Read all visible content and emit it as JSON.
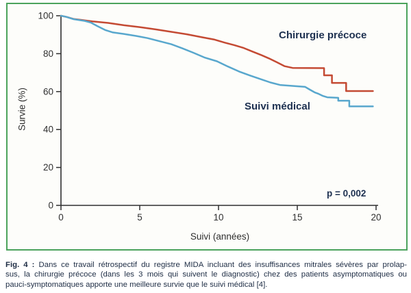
{
  "colors": {
    "panel_border": "#4ba35c",
    "panel_background": "#fdfdfa",
    "axis": "#2f2f2f",
    "navy_text": "#1d3050",
    "caption_text": "#1d2c44"
  },
  "chart_data": {
    "type": "line",
    "subtype": "kaplan-meier-survival-curves",
    "title": "",
    "xlabel": "Suivi (années)",
    "ylabel": "Survie (%)",
    "xlim": [
      0,
      20
    ],
    "ylim": [
      0,
      100
    ],
    "x_ticks": [
      "0",
      "5",
      "10",
      "15",
      "20"
    ],
    "y_ticks": [
      "0",
      "20",
      "40",
      "60",
      "80",
      "100"
    ],
    "grid": false,
    "legend_position": "inline-labels",
    "annotation": "p = 0,002",
    "series": [
      {
        "name": "Chirurgie précoce",
        "color": "#c44a33",
        "points": [
          [
            0,
            100
          ],
          [
            0.35,
            99.4
          ],
          [
            0.8,
            98.3
          ],
          [
            1.3,
            97.8
          ],
          [
            2,
            97
          ],
          [
            3,
            96.2
          ],
          [
            4,
            95
          ],
          [
            5,
            94
          ],
          [
            6,
            92.8
          ],
          [
            7,
            91.5
          ],
          [
            8,
            90.2
          ],
          [
            9,
            88.6
          ],
          [
            9.7,
            87.5
          ],
          [
            10.4,
            85.8
          ],
          [
            11,
            84.5
          ],
          [
            11.6,
            83
          ],
          [
            12.1,
            81.3
          ],
          [
            12.7,
            79.3
          ],
          [
            13.2,
            77.5
          ],
          [
            13.7,
            75.5
          ],
          [
            14.2,
            73.4
          ],
          [
            14.7,
            72.5
          ],
          [
            16.7,
            72.4
          ],
          [
            16.7,
            68.6
          ],
          [
            17.2,
            68.6
          ],
          [
            17.2,
            64.6
          ],
          [
            18.1,
            64.6
          ],
          [
            18.1,
            60.3
          ],
          [
            19.8,
            60.3
          ]
        ]
      },
      {
        "name": "Suivi médical",
        "color": "#58a7cd",
        "points": [
          [
            0,
            100
          ],
          [
            0.35,
            99.4
          ],
          [
            0.8,
            98.2
          ],
          [
            1.5,
            97.3
          ],
          [
            1.9,
            96.4
          ],
          [
            2.3,
            94.6
          ],
          [
            2.8,
            92.5
          ],
          [
            3.3,
            91.2
          ],
          [
            4,
            90.4
          ],
          [
            4.8,
            89.3
          ],
          [
            5.5,
            88.2
          ],
          [
            6.3,
            86.5
          ],
          [
            7,
            85
          ],
          [
            7.7,
            82.8
          ],
          [
            8.4,
            80.5
          ],
          [
            9.1,
            78
          ],
          [
            9.9,
            76
          ],
          [
            10.6,
            73.2
          ],
          [
            11.3,
            70.6
          ],
          [
            12,
            68.5
          ],
          [
            12.7,
            66.5
          ],
          [
            13.3,
            64.8
          ],
          [
            13.9,
            63.5
          ],
          [
            15.5,
            62.5
          ],
          [
            15.8,
            61
          ],
          [
            16.1,
            59.6
          ],
          [
            16.35,
            58.8
          ],
          [
            16.6,
            57.8
          ],
          [
            16.9,
            57
          ],
          [
            17.6,
            56.7
          ],
          [
            17.6,
            55.2
          ],
          [
            18.3,
            55.2
          ],
          [
            18.3,
            52.2
          ],
          [
            19.8,
            52.2
          ]
        ]
      }
    ]
  },
  "caption": {
    "prefix": "Fig. 4 :",
    "line1": " Dans ce travail rétrospectif du registre MIDA incluant des insuffisances mitrales sévères par prolap-",
    "line2": "sus, la chirurgie précoce (dans les 3 mois qui suivent le diagnostic) chez des patients asymptomatiques ou",
    "line3": "pauci-symptomatiques apporte une meilleure survie que le suivi médical [4].",
    "full_text": "Fig. 4 : Dans ce travail rétrospectif du registre MIDA incluant des insuffisances mitrales sévères par prolapsus, la chirurgie précoce (dans les 3 mois qui suivent le diagnostic) chez des patients asymptomatiques ou pauci-symptomatiques apporte une meilleure survie que le suivi médical [4]."
  }
}
